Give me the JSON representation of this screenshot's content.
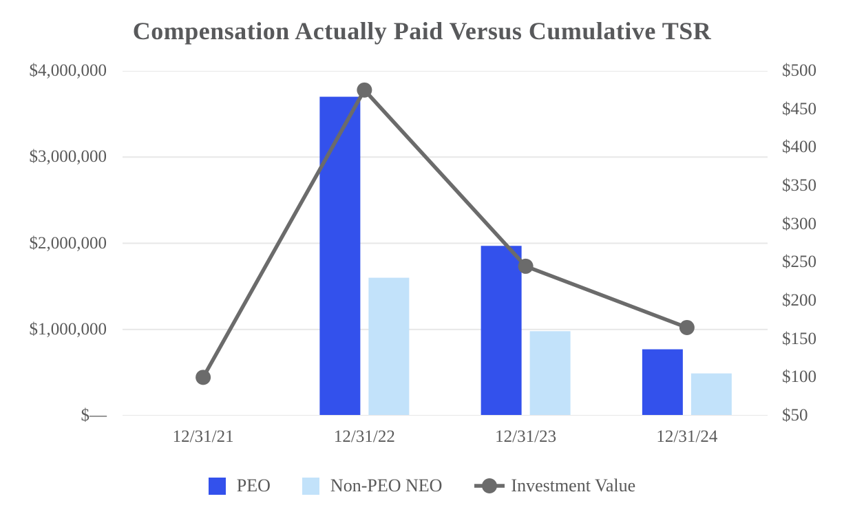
{
  "colors": {
    "peo_bar": "#3351EC",
    "non_peo_bar": "#C2E2FA",
    "investment_line": "#6B6B6B",
    "gridline": "#E7E7E7",
    "axis_text": "#595959",
    "title_text": "#58595B",
    "background": "#FFFFFF"
  },
  "chart_data": {
    "type": "combo-bar-line",
    "title": "Compensation Actually Paid Versus Cumulative TSR",
    "categories": [
      "12/31/21",
      "12/31/22",
      "12/31/23",
      "12/31/24"
    ],
    "series": [
      {
        "name": "PEO",
        "type": "bar",
        "axis": "left",
        "color": "#3351EC",
        "values": [
          null,
          3700000,
          1970000,
          770000
        ]
      },
      {
        "name": "Non-PEO NEO",
        "type": "bar",
        "axis": "left",
        "color": "#C2E2FA",
        "values": [
          null,
          1600000,
          980000,
          490000
        ]
      },
      {
        "name": "Investment Value",
        "type": "line",
        "axis": "right",
        "color": "#6B6B6B",
        "values": [
          100,
          475,
          245,
          165
        ]
      }
    ],
    "left_axis": {
      "min": 0,
      "max": 4000000,
      "tick_values": [
        0,
        1000000,
        2000000,
        3000000,
        4000000
      ],
      "tick_labels": [
        "$—",
        "$1,000,000",
        "$2,000,000",
        "$3,000,000",
        "$4,000,000"
      ]
    },
    "right_axis": {
      "min": 50,
      "max": 500,
      "tick_values": [
        50,
        100,
        150,
        200,
        250,
        300,
        350,
        400,
        450,
        500
      ],
      "tick_labels": [
        "$50",
        "$100",
        "$150",
        "$200",
        "$250",
        "$300",
        "$350",
        "$400",
        "$450",
        "$500"
      ]
    },
    "grid": true,
    "legend_position": "bottom"
  }
}
